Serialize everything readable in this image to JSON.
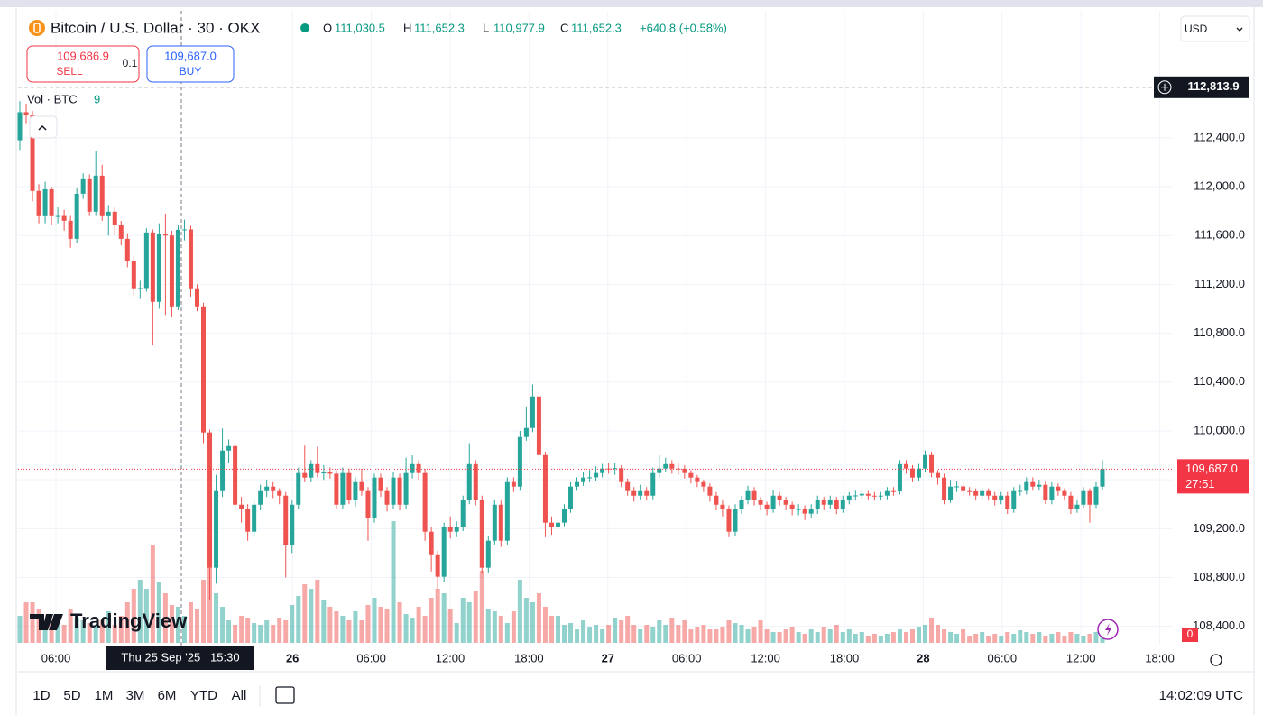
{
  "chart_data": {
    "type": "candlestick",
    "title": "Bitcoin / U.S. Dollar · 30 · OKX",
    "legend": [
      {
        "key": "O",
        "value": "111,030.5"
      },
      {
        "key": "H",
        "value": "111,652.3"
      },
      {
        "key": "L",
        "value": "110,977.9"
      },
      {
        "key": "C",
        "value": "111,652.3"
      }
    ],
    "change": "+640.8 (+0.58%)",
    "currency": "USD",
    "sell": {
      "price": "109,686.9",
      "label": "SELL"
    },
    "quantity": "0.1",
    "buy": {
      "price": "109,687.0",
      "label": "BUY"
    },
    "volume_label": "Vol · BTC",
    "volume_setting": "9",
    "watermark": "TradingView",
    "up_color": "#26a69a",
    "down_color": "#ef5350",
    "ylim": [
      108250,
      113440
    ],
    "yticks": [
      {
        "value": 108400,
        "label": "108,400.0"
      },
      {
        "value": 108800,
        "label": "108,800.0"
      },
      {
        "value": 109200,
        "label": "109,200.0"
      },
      {
        "value": 109600,
        "label": "109,600.0"
      },
      {
        "value": 110000,
        "label": "110,000.0"
      },
      {
        "value": 110400,
        "label": "110,400.0"
      },
      {
        "value": 110800,
        "label": "110,800.0"
      },
      {
        "value": 111200,
        "label": "111,200.0"
      },
      {
        "value": 111600,
        "label": "111,600.0"
      },
      {
        "value": 112000,
        "label": "112,000.0"
      },
      {
        "value": 112400,
        "label": "112,400.0"
      }
    ],
    "xtick_labels": [
      "06:00",
      "26",
      "06:00",
      "12:00",
      "18:00",
      "27",
      "06:00",
      "12:00",
      "18:00",
      "28",
      "06:00",
      "12:00",
      "18:00"
    ],
    "crosshair": {
      "value": 112813.9,
      "label": "112,813.9",
      "time": "Thu 25 Sep '25   15:30"
    },
    "last_price": {
      "value": 109687.0,
      "label": "109,687.0",
      "countdown": "27:51"
    },
    "volume_axis_label": "0",
    "timeframes": [
      "1D",
      "5D",
      "1M",
      "3M",
      "6M",
      "YTD",
      "All"
    ],
    "clock": "14:02:09 UTC",
    "open": [
      112380,
      112610,
      112590,
      111965,
      111758,
      111979,
      111758,
      111760,
      111721,
      111573,
      111942,
      112068,
      111795,
      112090,
      111758,
      111795,
      111684,
      111573,
      111389,
      111168,
      111170,
      111625,
      111057,
      111610,
      111600,
      111020,
      111647,
      111650,
      111168,
      111020,
      109987,
      108880,
      109507,
      109839,
      109876,
      109396,
      109359,
      109175,
      109396,
      109507,
      109544,
      109507,
      109470,
      109064,
      109396,
      109655,
      109618,
      109728,
      109655,
      109660,
      109650,
      109396,
      109655,
      109433,
      109581,
      109507,
      109286,
      109618,
      109507,
      109396,
      109618,
      109396,
      109655,
      109728,
      109655,
      109175,
      108990,
      108806,
      109212,
      109175,
      109212,
      109433,
      109728,
      109433,
      108880,
      109101,
      109396,
      109101,
      109581,
      109544,
      109950,
      110024,
      110282,
      109802,
      109249,
      109212,
      109249,
      109359,
      109544,
      109581,
      109618,
      109620,
      109655,
      109692,
      109690,
      109695,
      109581,
      109507,
      109470,
      109507,
      109470,
      109655,
      109692,
      109728,
      109692,
      109690,
      109655,
      109618,
      109581,
      109544,
      109470,
      109396,
      109359,
      109175,
      109359,
      109433,
      109507,
      109433,
      109396,
      109359,
      109470,
      109433,
      109396,
      109359,
      109360,
      109323,
      109359,
      109433,
      109396,
      109433,
      109359,
      109433,
      109470,
      109472,
      109485,
      109470,
      109468,
      109470,
      109507,
      109505,
      109728,
      109692,
      109618,
      109692,
      109802,
      109655,
      109618,
      109433,
      109544,
      109546,
      109507,
      109505,
      109470,
      109507,
      109470,
      109433,
      109470,
      109359,
      109507,
      109509,
      109581,
      109544,
      109559,
      109433,
      109544,
      109507,
      109470,
      109359,
      109396,
      109507,
      109396,
      109544
    ],
    "high": [
      112700,
      112680,
      112620,
      112020,
      112040,
      112000,
      111830,
      111810,
      111760,
      111990,
      112110,
      112100,
      112290,
      112180,
      111850,
      111830,
      111720,
      111620,
      111420,
      111230,
      111660,
      111650,
      111700,
      111780,
      111640,
      111690,
      111730,
      111680,
      111200,
      111050,
      110010,
      109640,
      110020,
      109930,
      109900,
      109460,
      109400,
      109440,
      109560,
      109600,
      109580,
      109530,
      109500,
      109430,
      109700,
      109880,
      109760,
      109870,
      109720,
      109700,
      109680,
      109700,
      109690,
      109620,
      109690,
      109540,
      109650,
      109650,
      109540,
      109660,
      109650,
      109780,
      109800,
      109760,
      109690,
      109210,
      109020,
      109250,
      109300,
      109260,
      109470,
      109900,
      109760,
      109470,
      109140,
      109440,
      109430,
      109620,
      109620,
      110000,
      110200,
      110380,
      110310,
      109830,
      109300,
      109300,
      109400,
      109580,
      109620,
      109660,
      109680,
      109710,
      109730,
      109740,
      109740,
      109720,
      109610,
      109540,
      109560,
      109540,
      109700,
      109800,
      109780,
      109760,
      109740,
      109720,
      109680,
      109640,
      109600,
      109570,
      109500,
      109430,
      109390,
      109400,
      109470,
      109550,
      109540,
      109460,
      109420,
      109520,
      109500,
      109460,
      109420,
      109400,
      109390,
      109400,
      109470,
      109460,
      109470,
      109460,
      109470,
      109500,
      109510,
      109520,
      109510,
      109500,
      109500,
      109540,
      109540,
      109760,
      109760,
      109720,
      109730,
      109840,
      109830,
      109680,
      109650,
      109600,
      109590,
      109580,
      109540,
      109530,
      109540,
      109530,
      109500,
      109500,
      109500,
      109540,
      109560,
      109620,
      109620,
      109600,
      109590,
      109580,
      109570,
      109530,
      109500,
      109440,
      109540,
      109530,
      109580,
      109760
    ],
    "low": [
      112300,
      112520,
      111880,
      111700,
      111700,
      111690,
      111700,
      111640,
      111500,
      111540,
      111900,
      111760,
      111760,
      111720,
      111600,
      111600,
      111520,
      111340,
      111100,
      111080,
      111140,
      110700,
      111000,
      110950,
      110930,
      110990,
      111560,
      111100,
      110980,
      109900,
      108620,
      108750,
      109460,
      109740,
      109330,
      109250,
      109100,
      109130,
      109350,
      109460,
      109450,
      109400,
      108800,
      109000,
      109360,
      109580,
      109580,
      109620,
      109600,
      109610,
      109360,
      109360,
      109400,
      109380,
      109470,
      109100,
      109250,
      109460,
      109340,
      109360,
      109350,
      109360,
      109610,
      109600,
      109100,
      108850,
      108700,
      108760,
      109120,
      109130,
      109180,
      109400,
      109390,
      108830,
      108840,
      109070,
      109050,
      109070,
      109500,
      109510,
      109920,
      109990,
      109760,
      109130,
      109150,
      109170,
      109220,
      109330,
      109510,
      109550,
      109580,
      109590,
      109620,
      109650,
      109640,
      109540,
      109470,
      109420,
      109440,
      109430,
      109440,
      109620,
      109660,
      109650,
      109640,
      109610,
      109570,
      109540,
      109500,
      109420,
      109350,
      109300,
      109130,
      109140,
      109320,
      109400,
      109390,
      109350,
      109310,
      109330,
      109390,
      109350,
      109310,
      109310,
      109270,
      109290,
      109320,
      109350,
      109360,
      109320,
      109330,
      109400,
      109430,
      109440,
      109440,
      109430,
      109430,
      109440,
      109470,
      109480,
      109650,
      109580,
      109590,
      109660,
      109620,
      109560,
      109400,
      109410,
      109500,
      109470,
      109470,
      109430,
      109440,
      109430,
      109390,
      109400,
      109320,
      109330,
      109470,
      109480,
      109510,
      109510,
      109400,
      109400,
      109470,
      109430,
      109320,
      109330,
      109370,
      109250,
      109370,
      109520
    ],
    "close": [
      112610,
      112590,
      111965,
      111758,
      111979,
      111758,
      111760,
      111721,
      111573,
      111942,
      112068,
      111795,
      112090,
      111758,
      111795,
      111684,
      111573,
      111389,
      111168,
      111170,
      111625,
      111057,
      111610,
      111600,
      111020,
      111647,
      111650,
      111168,
      111020,
      109987,
      108880,
      109507,
      109839,
      109876,
      109396,
      109359,
      109175,
      109396,
      109507,
      109544,
      109507,
      109470,
      109064,
      109396,
      109655,
      109618,
      109728,
      109655,
      109660,
      109650,
      109396,
      109655,
      109433,
      109581,
      109507,
      109286,
      109618,
      109507,
      109396,
      109618,
      109396,
      109655,
      109728,
      109655,
      109175,
      108990,
      108806,
      109212,
      109175,
      109212,
      109433,
      109728,
      109433,
      108880,
      109101,
      109396,
      109101,
      109581,
      109544,
      109950,
      110024,
      110282,
      109802,
      109249,
      109212,
      109249,
      109359,
      109544,
      109581,
      109618,
      109620,
      109655,
      109692,
      109690,
      109695,
      109581,
      109507,
      109470,
      109507,
      109470,
      109655,
      109692,
      109728,
      109692,
      109690,
      109655,
      109618,
      109581,
      109544,
      109470,
      109396,
      109359,
      109175,
      109359,
      109433,
      109507,
      109433,
      109396,
      109359,
      109470,
      109433,
      109396,
      109359,
      109360,
      109323,
      109359,
      109433,
      109396,
      109433,
      109359,
      109433,
      109470,
      109472,
      109485,
      109470,
      109468,
      109470,
      109507,
      109505,
      109728,
      109692,
      109618,
      109692,
      109802,
      109655,
      109618,
      109433,
      109544,
      109546,
      109507,
      109505,
      109470,
      109507,
      109470,
      109433,
      109470,
      109359,
      109507,
      109509,
      109581,
      109544,
      109559,
      109433,
      109544,
      109507,
      109470,
      109359,
      109396,
      109507,
      109396,
      109544,
      109687
    ],
    "volume": [
      30,
      45,
      45,
      38,
      25,
      25,
      22,
      20,
      38,
      28,
      25,
      22,
      20,
      25,
      35,
      20,
      30,
      45,
      60,
      70,
      60,
      108,
      68,
      55,
      42,
      40,
      30,
      45,
      38,
      70,
      85,
      55,
      40,
      25,
      20,
      30,
      28,
      22,
      20,
      25,
      20,
      28,
      25,
      42,
      52,
      65,
      60,
      70,
      48,
      40,
      35,
      30,
      25,
      35,
      25,
      42,
      50,
      40,
      38,
      135,
      45,
      32,
      28,
      40,
      30,
      50,
      60,
      55,
      38,
      22,
      50,
      45,
      58,
      80,
      38,
      35,
      30,
      22,
      35,
      70,
      50,
      45,
      55,
      40,
      30,
      30,
      20,
      22,
      15,
      25,
      18,
      20,
      15,
      20,
      28,
      25,
      30,
      20,
      15,
      20,
      18,
      25,
      20,
      28,
      20,
      25,
      15,
      18,
      20,
      15,
      15,
      18,
      25,
      22,
      20,
      15,
      18,
      25,
      15,
      12,
      12,
      15,
      18,
      12,
      10,
      15,
      12,
      18,
      15,
      20,
      12,
      15,
      10,
      12,
      8,
      10,
      8,
      10,
      12,
      15,
      12,
      15,
      18,
      20,
      28,
      20,
      15,
      12,
      10,
      15,
      8,
      10,
      12,
      8,
      10,
      8,
      12,
      10,
      14,
      12,
      10,
      12,
      8,
      10,
      12,
      8,
      12,
      10,
      8,
      10,
      12,
      18
    ]
  }
}
